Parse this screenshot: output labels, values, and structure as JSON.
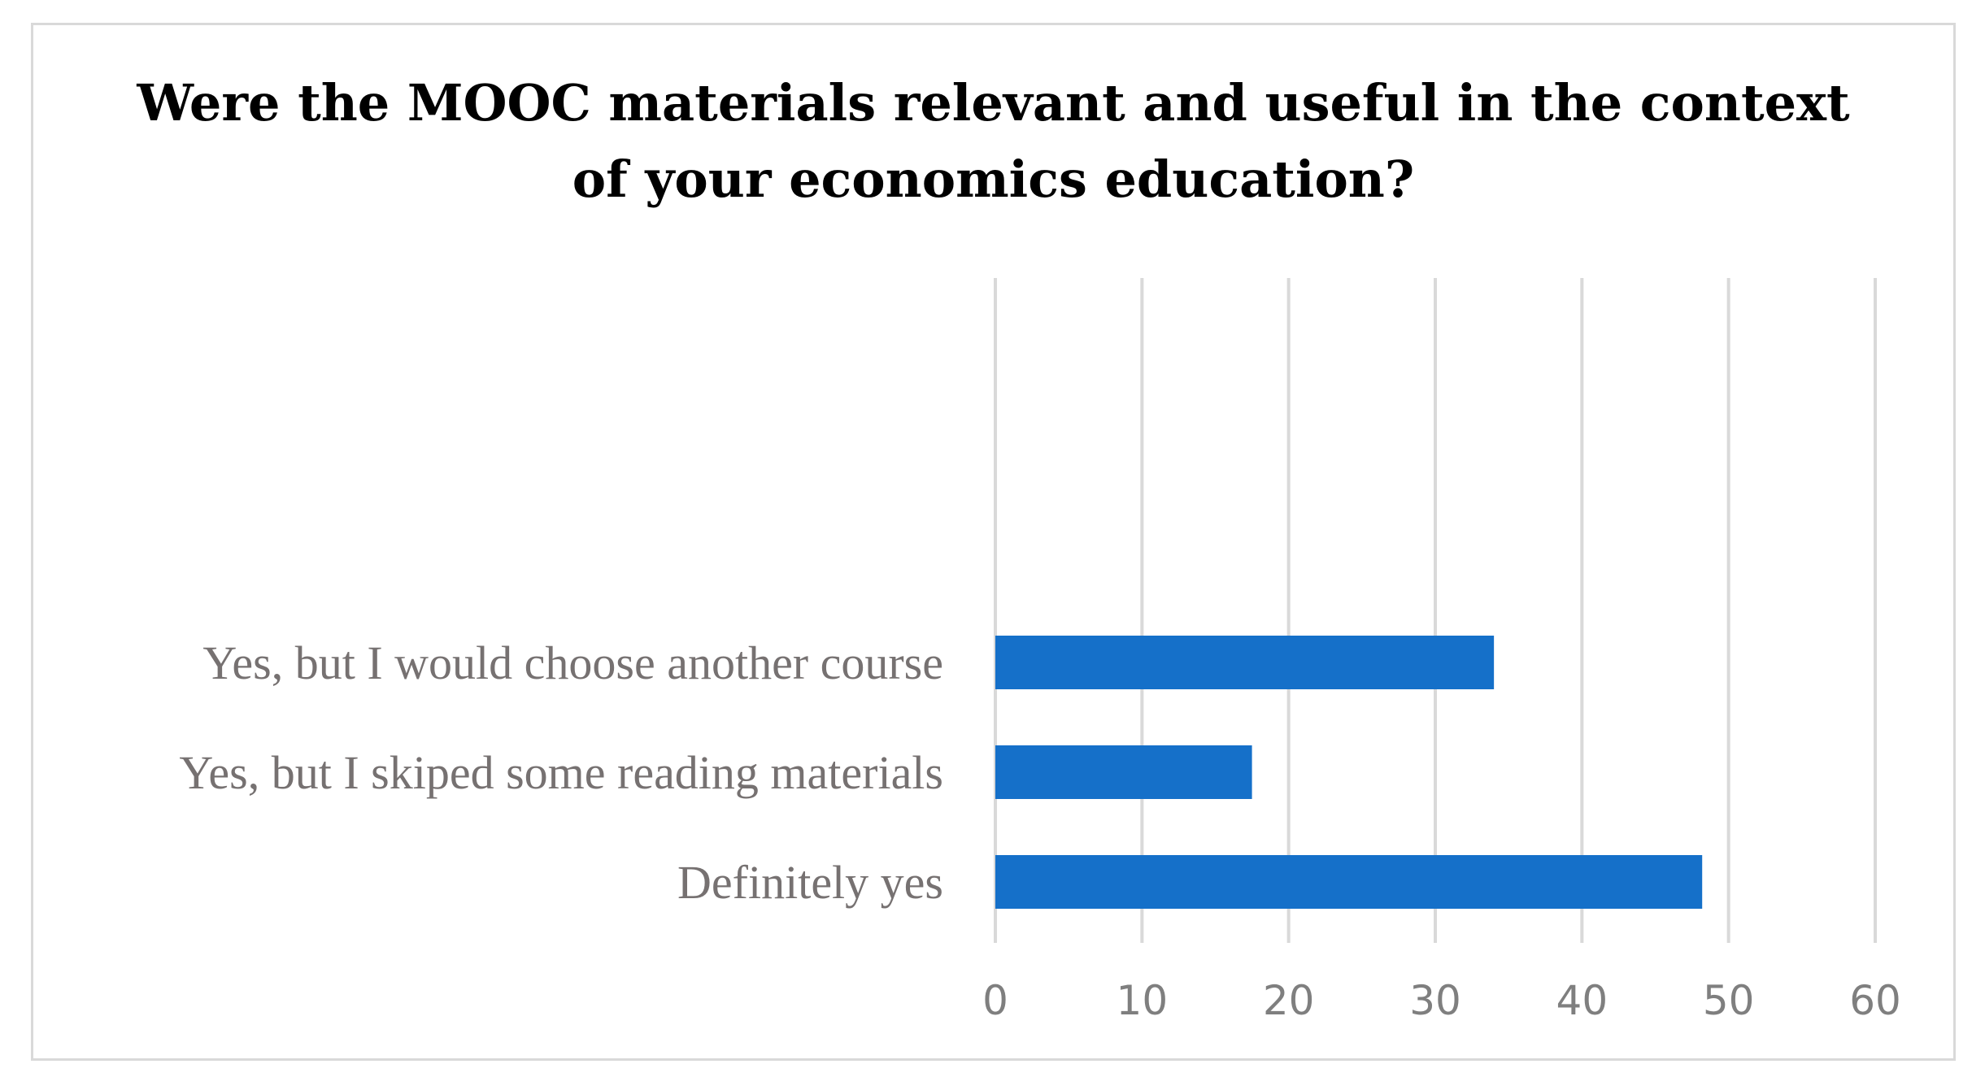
{
  "chart_data": {
    "type": "bar",
    "orientation": "horizontal",
    "title_lines": [
      "Were the MOOC materials relevant and useful in the context",
      "of your economics education?"
    ],
    "categories": [
      "Yes, but I would choose another course",
      "Yes, but I skiped some reading materials",
      "Definitely yes"
    ],
    "values": [
      34,
      17.5,
      48.2
    ],
    "xlim": [
      0,
      60
    ],
    "xticks": [
      0,
      10,
      20,
      30,
      40,
      50,
      60
    ],
    "grid": "vertical",
    "legend": "none",
    "colors": {
      "bar": "#1570c9",
      "grid": "#d9d9d9",
      "frame": "#d9d9d9"
    }
  }
}
